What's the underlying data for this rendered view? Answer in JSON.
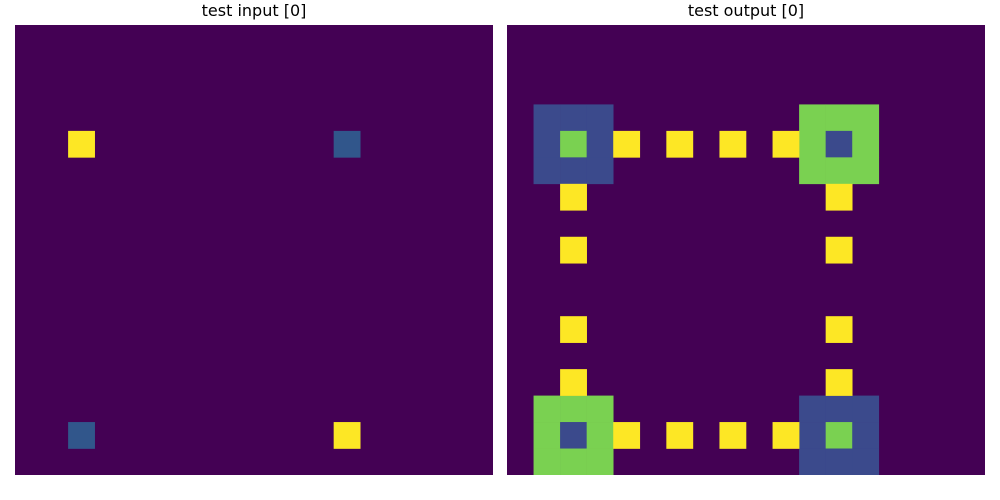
{
  "panels": [
    {
      "title": "test input [0]",
      "rows": 17,
      "cols": 18,
      "background": 0,
      "cells": [
        {
          "row": 4,
          "col": 2,
          "value": 4
        },
        {
          "row": 4,
          "col": 12,
          "value": 2
        },
        {
          "row": 15,
          "col": 2,
          "value": 2
        },
        {
          "row": 15,
          "col": 12,
          "value": 4
        }
      ]
    },
    {
      "title": "test output [0]",
      "rows": 17,
      "cols": 18,
      "background": 0,
      "cells": [
        {
          "row": 3,
          "col": 1,
          "value": 1
        },
        {
          "row": 3,
          "col": 2,
          "value": 1
        },
        {
          "row": 3,
          "col": 3,
          "value": 1
        },
        {
          "row": 4,
          "col": 1,
          "value": 1
        },
        {
          "row": 4,
          "col": 2,
          "value": 3
        },
        {
          "row": 4,
          "col": 3,
          "value": 1
        },
        {
          "row": 5,
          "col": 1,
          "value": 1
        },
        {
          "row": 5,
          "col": 2,
          "value": 1
        },
        {
          "row": 5,
          "col": 3,
          "value": 1
        },
        {
          "row": 3,
          "col": 11,
          "value": 3
        },
        {
          "row": 3,
          "col": 12,
          "value": 3
        },
        {
          "row": 3,
          "col": 13,
          "value": 3
        },
        {
          "row": 4,
          "col": 11,
          "value": 3
        },
        {
          "row": 4,
          "col": 12,
          "value": 1
        },
        {
          "row": 4,
          "col": 13,
          "value": 3
        },
        {
          "row": 5,
          "col": 11,
          "value": 3
        },
        {
          "row": 5,
          "col": 12,
          "value": 3
        },
        {
          "row": 5,
          "col": 13,
          "value": 3
        },
        {
          "row": 14,
          "col": 1,
          "value": 3
        },
        {
          "row": 14,
          "col": 2,
          "value": 3
        },
        {
          "row": 14,
          "col": 3,
          "value": 3
        },
        {
          "row": 15,
          "col": 1,
          "value": 3
        },
        {
          "row": 15,
          "col": 2,
          "value": 1
        },
        {
          "row": 15,
          "col": 3,
          "value": 3
        },
        {
          "row": 16,
          "col": 1,
          "value": 3
        },
        {
          "row": 16,
          "col": 2,
          "value": 3
        },
        {
          "row": 16,
          "col": 3,
          "value": 3
        },
        {
          "row": 14,
          "col": 11,
          "value": 1
        },
        {
          "row": 14,
          "col": 12,
          "value": 1
        },
        {
          "row": 14,
          "col": 13,
          "value": 1
        },
        {
          "row": 15,
          "col": 11,
          "value": 1
        },
        {
          "row": 15,
          "col": 12,
          "value": 3
        },
        {
          "row": 15,
          "col": 13,
          "value": 1
        },
        {
          "row": 16,
          "col": 11,
          "value": 1
        },
        {
          "row": 16,
          "col": 12,
          "value": 1
        },
        {
          "row": 16,
          "col": 13,
          "value": 1
        },
        {
          "row": 4,
          "col": 4,
          "value": 4
        },
        {
          "row": 4,
          "col": 6,
          "value": 4
        },
        {
          "row": 4,
          "col": 8,
          "value": 4
        },
        {
          "row": 4,
          "col": 10,
          "value": 4
        },
        {
          "row": 15,
          "col": 4,
          "value": 4
        },
        {
          "row": 15,
          "col": 6,
          "value": 4
        },
        {
          "row": 15,
          "col": 8,
          "value": 4
        },
        {
          "row": 15,
          "col": 10,
          "value": 4
        },
        {
          "row": 6,
          "col": 2,
          "value": 4
        },
        {
          "row": 8,
          "col": 2,
          "value": 4
        },
        {
          "row": 11,
          "col": 2,
          "value": 4
        },
        {
          "row": 13,
          "col": 2,
          "value": 4
        },
        {
          "row": 6,
          "col": 12,
          "value": 4
        },
        {
          "row": 8,
          "col": 12,
          "value": 4
        },
        {
          "row": 11,
          "col": 12,
          "value": 4
        },
        {
          "row": 13,
          "col": 12,
          "value": 4
        }
      ]
    }
  ],
  "palette": {
    "0": "#440154",
    "1": "#3b4a8c",
    "2": "#31568b",
    "3": "#7ad151",
    "4": "#fde725"
  }
}
